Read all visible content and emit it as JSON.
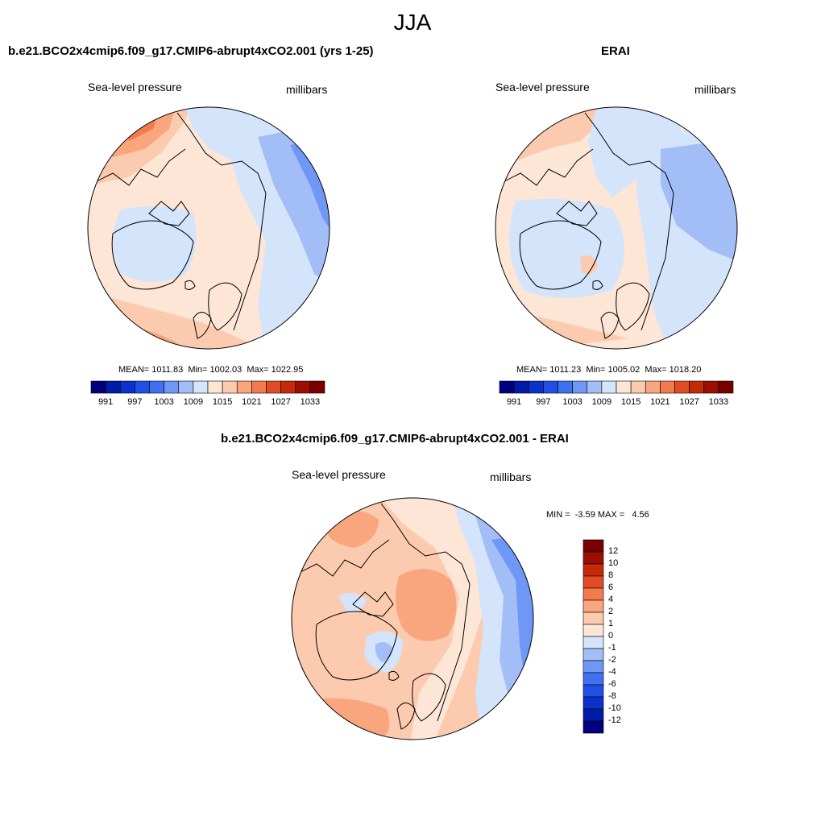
{
  "figure": {
    "season": "JJA"
  },
  "panels": {
    "model": {
      "title": "b.e21.BCO2x4cmip6.f09_g17.CMIP6-abrupt4xCO2.001 (yrs 1-25)",
      "left_label": "Sea-level pressure",
      "right_label": "millibars",
      "stats": "MEAN= 1011.83  Min= 1002.03  Max= 1022.95"
    },
    "obs": {
      "title": "ERAI",
      "left_label": "Sea-level pressure",
      "right_label": "millibars",
      "stats": "MEAN= 1011.23  Min= 1005.02  Max= 1018.20"
    },
    "diff": {
      "title": "b.e21.BCO2x4cmip6.f09_g17.CMIP6-abrupt4xCO2.001 - ERAI",
      "left_label": "Sea-level pressure",
      "right_label": "millibars",
      "stats": "MIN =  -3.59 MAX =   4.56"
    }
  },
  "chart_data": [
    {
      "type": "heatmap",
      "projection": "north-polar-stereographic",
      "title": "b.e21.BCO2x4cmip6.f09_g17.CMIP6-abrupt4xCO2.001 (yrs 1-25)",
      "variable": "Sea-level pressure",
      "units": "millibars",
      "mean": 1011.83,
      "min": 1002.03,
      "max": 1022.95,
      "colorbar": {
        "orientation": "horizontal",
        "levels": [
          991,
          994,
          997,
          1000,
          1003,
          1006,
          1009,
          1012,
          1015,
          1018,
          1021,
          1024,
          1027,
          1030,
          1033
        ],
        "tick_labels": [
          "991",
          "997",
          "1003",
          "1009",
          "1015",
          "1021",
          "1027",
          "1033"
        ]
      }
    },
    {
      "type": "heatmap",
      "projection": "north-polar-stereographic",
      "title": "ERAI",
      "variable": "Sea-level pressure",
      "units": "millibars",
      "mean": 1011.23,
      "min": 1005.02,
      "max": 1018.2,
      "colorbar": {
        "orientation": "horizontal",
        "levels": [
          991,
          994,
          997,
          1000,
          1003,
          1006,
          1009,
          1012,
          1015,
          1018,
          1021,
          1024,
          1027,
          1030,
          1033
        ],
        "tick_labels": [
          "991",
          "997",
          "1003",
          "1009",
          "1015",
          "1021",
          "1027",
          "1033"
        ]
      }
    },
    {
      "type": "heatmap",
      "projection": "north-polar-stereographic",
      "title": "b.e21.BCO2x4cmip6.f09_g17.CMIP6-abrupt4xCO2.001 - ERAI",
      "variable": "Sea-level pressure",
      "units": "millibars",
      "min": -3.59,
      "max": 4.56,
      "colorbar": {
        "orientation": "vertical",
        "levels": [
          12,
          10,
          8,
          6,
          4,
          2,
          1,
          0,
          -1,
          -2,
          -4,
          -6,
          -8,
          -10,
          -12
        ],
        "tick_labels": [
          "12",
          "10",
          "8",
          "6",
          "4",
          "2",
          "1",
          "0",
          "-1",
          "-2",
          "-4",
          "-6",
          "-8",
          "-10",
          "-12"
        ]
      }
    }
  ],
  "colors": {
    "scale": [
      "#000080",
      "#001ba8",
      "#0a33cc",
      "#1f50e6",
      "#3f72f2",
      "#6f97f6",
      "#a3bdf7",
      "#d4e4fb",
      "#fde6d6",
      "#fccbaf",
      "#f9a57e",
      "#f27a4c",
      "#e24c24",
      "#c42a08",
      "#9c0f00",
      "#7a0000"
    ],
    "coast": "#000000"
  }
}
